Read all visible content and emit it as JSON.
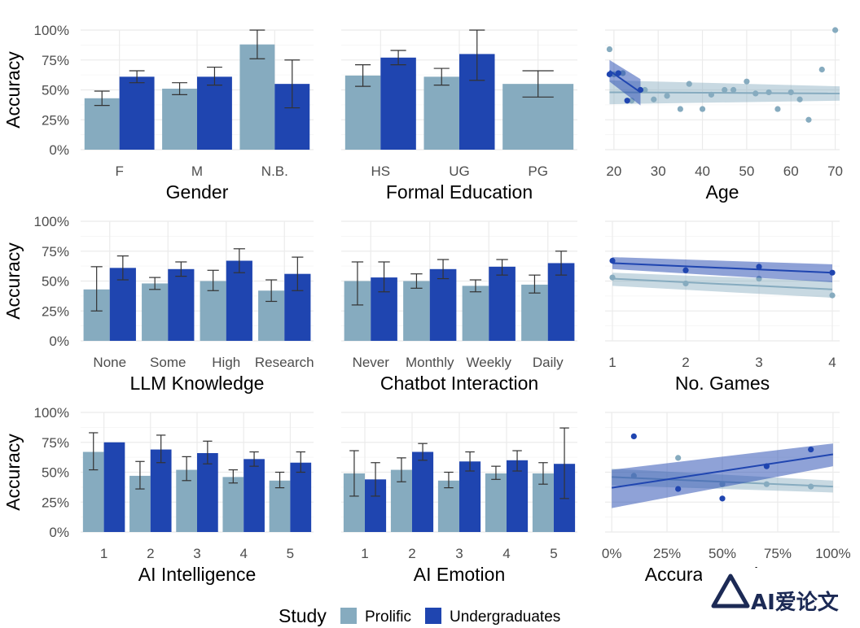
{
  "colors": {
    "prolific": "#86abbf",
    "undergrad": "#1f45b0",
    "errbar": "#333333",
    "grid": "#ebebeb"
  },
  "legend": {
    "title": "Study",
    "items": [
      "Prolific",
      "Undergraduates"
    ]
  },
  "watermark": "AI爱论文",
  "chart_data": [
    {
      "type": "bar",
      "xlabel": "Gender",
      "ylabel": "Accuracy",
      "ylim": [
        0,
        1
      ],
      "yticks": [
        "0%",
        "25%",
        "50%",
        "75%",
        "100%"
      ],
      "categories": [
        "F",
        "M",
        "N.B."
      ],
      "series": [
        {
          "name": "Prolific",
          "values": [
            0.43,
            0.51,
            0.88
          ],
          "err_low": [
            0.37,
            0.46,
            0.76
          ],
          "err_high": [
            0.49,
            0.56,
            1.0
          ]
        },
        {
          "name": "Undergraduates",
          "values": [
            0.61,
            0.61,
            0.55
          ],
          "err_low": [
            0.56,
            0.54,
            0.35
          ],
          "err_high": [
            0.66,
            0.69,
            0.75
          ]
        }
      ]
    },
    {
      "type": "bar",
      "xlabel": "Formal Education",
      "ylabel": "",
      "ylim": [
        0,
        1
      ],
      "categories": [
        "HS",
        "UG",
        "PG"
      ],
      "series": [
        {
          "name": "Prolific",
          "values": [
            0.62,
            0.61,
            0.55
          ],
          "err_low": [
            0.53,
            0.54,
            0.44
          ],
          "err_high": [
            0.71,
            0.68,
            0.66
          ]
        },
        {
          "name": "Undergraduates",
          "values": [
            0.77,
            0.8,
            null
          ],
          "err_low": [
            0.71,
            0.58,
            null
          ],
          "err_high": [
            0.83,
            1.0,
            null
          ]
        }
      ]
    },
    {
      "type": "scatter",
      "xlabel": "Age",
      "ylabel": "",
      "xlim": [
        18,
        71
      ],
      "ylim": [
        0,
        1
      ],
      "xticks": [
        20,
        30,
        40,
        50,
        60,
        70
      ],
      "series": [
        {
          "name": "Prolific",
          "points": [
            [
              19,
              0.84
            ],
            [
              20,
              0.63
            ],
            [
              22,
              0.64
            ],
            [
              24,
              0.41
            ],
            [
              27,
              0.5
            ],
            [
              29,
              0.42
            ],
            [
              32,
              0.45
            ],
            [
              35,
              0.34
            ],
            [
              37,
              0.55
            ],
            [
              40,
              0.34
            ],
            [
              42,
              0.46
            ],
            [
              45,
              0.5
            ],
            [
              47,
              0.5
            ],
            [
              50,
              0.57
            ],
            [
              52,
              0.47
            ],
            [
              55,
              0.48
            ],
            [
              57,
              0.34
            ],
            [
              60,
              0.48
            ],
            [
              62,
              0.42
            ],
            [
              64,
              0.25
            ],
            [
              67,
              0.67
            ],
            [
              70,
              1.0
            ]
          ],
          "fit": {
            "x": [
              19,
              71
            ],
            "y": [
              0.48,
              0.47
            ],
            "ci_low": [
              0.38,
              0.41
            ],
            "ci_high": [
              0.58,
              0.53
            ]
          }
        },
        {
          "name": "Undergraduates",
          "points": [
            [
              19,
              0.63
            ],
            [
              21,
              0.64
            ],
            [
              23,
              0.41
            ],
            [
              26,
              0.5
            ]
          ],
          "fit": {
            "x": [
              19,
              26
            ],
            "y": [
              0.66,
              0.48
            ],
            "ci_low": [
              0.57,
              0.37
            ],
            "ci_high": [
              0.75,
              0.59
            ]
          }
        }
      ]
    },
    {
      "type": "bar",
      "xlabel": "LLM Knowledge",
      "ylabel": "Accuracy",
      "ylim": [
        0,
        1
      ],
      "yticks": [
        "0%",
        "25%",
        "50%",
        "75%",
        "100%"
      ],
      "categories": [
        "None",
        "Some",
        "High",
        "Research"
      ],
      "series": [
        {
          "name": "Prolific",
          "values": [
            0.43,
            0.48,
            0.5,
            0.42
          ],
          "err_low": [
            0.25,
            0.43,
            0.42,
            0.33
          ],
          "err_high": [
            0.62,
            0.53,
            0.59,
            0.51
          ]
        },
        {
          "name": "Undergraduates",
          "values": [
            0.61,
            0.6,
            0.67,
            0.56
          ],
          "err_low": [
            0.51,
            0.54,
            0.57,
            0.42
          ],
          "err_high": [
            0.71,
            0.66,
            0.77,
            0.7
          ]
        }
      ]
    },
    {
      "type": "bar",
      "xlabel": "Chatbot Interaction",
      "ylabel": "",
      "ylim": [
        0,
        1
      ],
      "categories": [
        "Never",
        "Monthly",
        "Weekly",
        "Daily"
      ],
      "series": [
        {
          "name": "Prolific",
          "values": [
            0.5,
            0.5,
            0.46,
            0.47
          ],
          "err_low": [
            0.3,
            0.44,
            0.41,
            0.4
          ],
          "err_high": [
            0.66,
            0.56,
            0.51,
            0.55
          ]
        },
        {
          "name": "Undergraduates",
          "values": [
            0.53,
            0.6,
            0.62,
            0.65
          ],
          "err_low": [
            0.41,
            0.52,
            0.55,
            0.55
          ],
          "err_high": [
            0.66,
            0.68,
            0.68,
            0.75
          ]
        }
      ]
    },
    {
      "type": "scatter",
      "xlabel": "No. Games",
      "ylabel": "",
      "xlim": [
        0.9,
        4.1
      ],
      "ylim": [
        0,
        1
      ],
      "xticks": [
        1,
        2,
        3,
        4
      ],
      "series": [
        {
          "name": "Prolific",
          "points": [
            [
              1,
              0.53
            ],
            [
              2,
              0.48
            ],
            [
              3,
              0.52
            ],
            [
              4,
              0.38
            ]
          ],
          "fit": {
            "x": [
              1,
              4
            ],
            "y": [
              0.52,
              0.43
            ],
            "ci_low": [
              0.46,
              0.36
            ],
            "ci_high": [
              0.57,
              0.5
            ]
          }
        },
        {
          "name": "Undergraduates",
          "points": [
            [
              1,
              0.67
            ],
            [
              2,
              0.59
            ],
            [
              3,
              0.62
            ],
            [
              4,
              0.57
            ]
          ],
          "fit": {
            "x": [
              1,
              4
            ],
            "y": [
              0.65,
              0.57
            ],
            "ci_low": [
              0.6,
              0.49
            ],
            "ci_high": [
              0.7,
              0.64
            ]
          }
        }
      ]
    },
    {
      "type": "bar",
      "xlabel": "AI Intelligence",
      "ylabel": "Accuracy",
      "ylim": [
        0,
        1
      ],
      "yticks": [
        "0%",
        "25%",
        "50%",
        "75%",
        "100%"
      ],
      "categories": [
        "1",
        "2",
        "3",
        "4",
        "5"
      ],
      "series": [
        {
          "name": "Prolific",
          "values": [
            0.67,
            0.47,
            0.52,
            0.46,
            0.43
          ],
          "err_low": [
            0.52,
            0.36,
            0.43,
            0.41,
            0.37
          ],
          "err_high": [
            0.83,
            0.59,
            0.63,
            0.52,
            0.5
          ]
        },
        {
          "name": "Undergraduates",
          "values": [
            0.75,
            0.69,
            0.66,
            0.61,
            0.58
          ],
          "err_low": [
            null,
            0.58,
            0.57,
            0.55,
            0.5
          ],
          "err_high": [
            null,
            0.81,
            0.76,
            0.67,
            0.67
          ]
        }
      ]
    },
    {
      "type": "bar",
      "xlabel": "AI Emotion",
      "ylabel": "",
      "ylim": [
        0,
        1
      ],
      "categories": [
        "1",
        "2",
        "3",
        "4",
        "5"
      ],
      "series": [
        {
          "name": "Prolific",
          "values": [
            0.49,
            0.52,
            0.43,
            0.49,
            0.49
          ],
          "err_low": [
            0.3,
            0.42,
            0.37,
            0.44,
            0.4
          ],
          "err_high": [
            0.68,
            0.62,
            0.5,
            0.55,
            0.58
          ]
        },
        {
          "name": "Undergraduates",
          "values": [
            0.44,
            0.67,
            0.59,
            0.6,
            0.57
          ],
          "err_low": [
            0.3,
            0.6,
            0.51,
            0.51,
            0.28
          ],
          "err_high": [
            0.58,
            0.74,
            0.67,
            0.68,
            0.87
          ]
        }
      ]
    },
    {
      "type": "scatter",
      "xlabel": "Accuracy Estimate",
      "ylabel": "",
      "xlim": [
        -0.03,
        1.03
      ],
      "ylim": [
        0,
        1
      ],
      "xticks": [
        "0%",
        "25%",
        "50%",
        "75%",
        "100%"
      ],
      "series": [
        {
          "name": "Prolific",
          "points": [
            [
              0.1,
              0.47
            ],
            [
              0.3,
              0.62
            ],
            [
              0.5,
              0.4
            ],
            [
              0.7,
              0.4
            ],
            [
              0.9,
              0.38
            ]
          ],
          "fit": {
            "x": [
              0,
              1
            ],
            "y": [
              0.46,
              0.38
            ],
            "ci_low": [
              0.39,
              0.33
            ],
            "ci_high": [
              0.53,
              0.43
            ]
          }
        },
        {
          "name": "Undergraduates",
          "points": [
            [
              0.1,
              0.8
            ],
            [
              0.3,
              0.36
            ],
            [
              0.5,
              0.28
            ],
            [
              0.7,
              0.55
            ],
            [
              0.9,
              0.69
            ]
          ],
          "fit": {
            "x": [
              0,
              1
            ],
            "y": [
              0.37,
              0.65
            ],
            "ci_low": [
              0.2,
              0.55
            ],
            "ci_high": [
              0.52,
              0.74
            ]
          }
        }
      ]
    }
  ]
}
